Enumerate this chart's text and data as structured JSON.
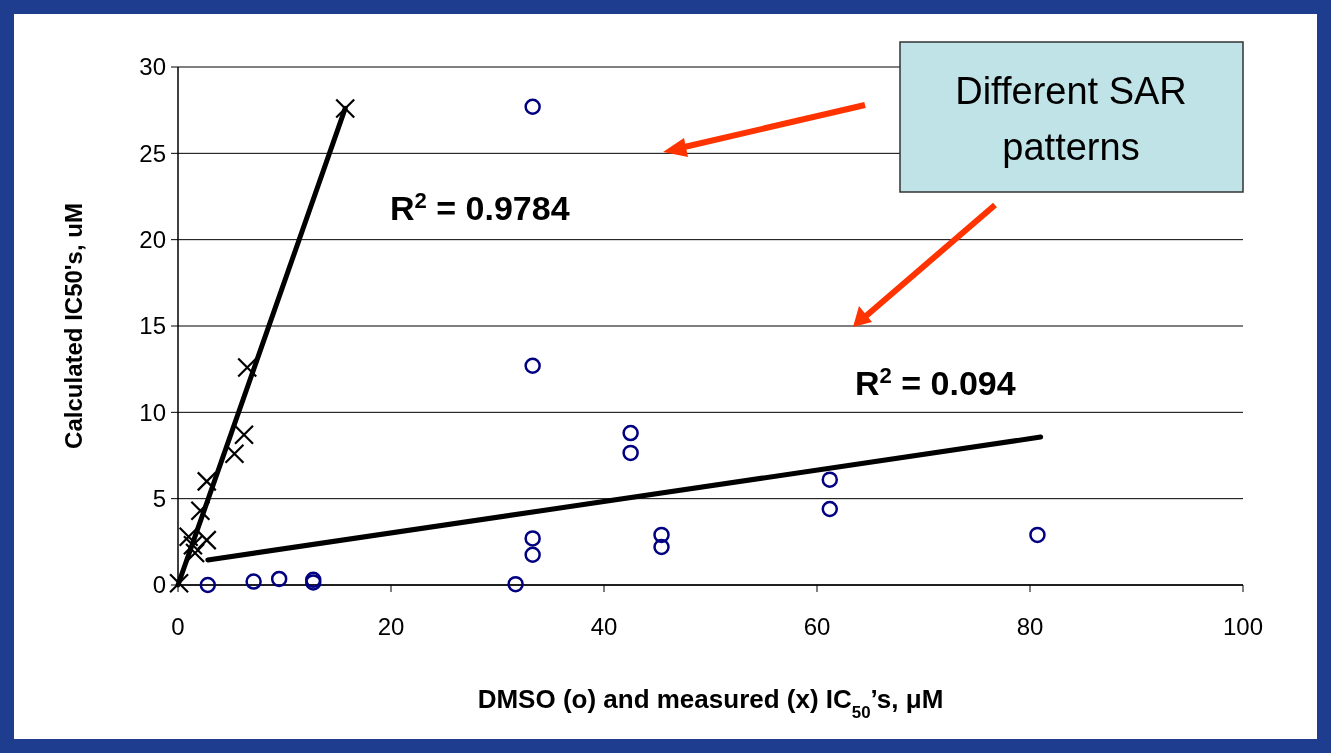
{
  "chart_data": {
    "type": "scatter",
    "xlabel": "DMSO (o) and measured (x) IC$_{50}$’s, μM",
    "ylabel": "Calculated IC50's, uM",
    "xlim": [
      0,
      100
    ],
    "xticks": [
      0,
      20,
      40,
      60,
      80,
      100
    ],
    "ylim": [
      0,
      30
    ],
    "yticks": [
      0,
      5,
      10,
      15,
      20,
      25,
      30
    ],
    "grid": "y",
    "series": [
      {
        "marker": "circle",
        "color": "#000080",
        "x": [
          2.8,
          7.1,
          9.5,
          12.7,
          12.7,
          31.7,
          33.3,
          33.3,
          33.3,
          33.3,
          42.5,
          42.5,
          45.4,
          45.4,
          61.2,
          61.2,
          80.7
        ],
        "values": [
          0,
          0.2,
          0.35,
          0.3,
          0.15,
          0.05,
          27.7,
          12.7,
          2.7,
          1.75,
          8.8,
          7.65,
          2.9,
          2.2,
          6.1,
          4.4,
          2.9
        ]
      },
      {
        "marker": "cross",
        "color": "#000000",
        "x": [
          0.1,
          1.0,
          1.4,
          1.6,
          2.1,
          2.7,
          2.7,
          5.3,
          6.2,
          6.5,
          15.7
        ],
        "values": [
          0.1,
          2.8,
          2.3,
          1.85,
          4.3,
          6.0,
          2.6,
          7.6,
          8.7,
          12.6,
          27.6
        ]
      },
      {
        "type": "line",
        "marker": "none",
        "color": "#000000",
        "x": [
          0,
          15.7
        ],
        "values": [
          0,
          27.6
        ]
      },
      {
        "type": "line",
        "marker": "none",
        "color": "#000000",
        "x": [
          2.8,
          81
        ],
        "values": [
          1.45,
          8.57
        ]
      }
    ],
    "annotations": [
      "R$^{2}$ = 0.9784",
      "R$^{2}$ = 0.094",
      "Different SAR patterns"
    ]
  }
}
